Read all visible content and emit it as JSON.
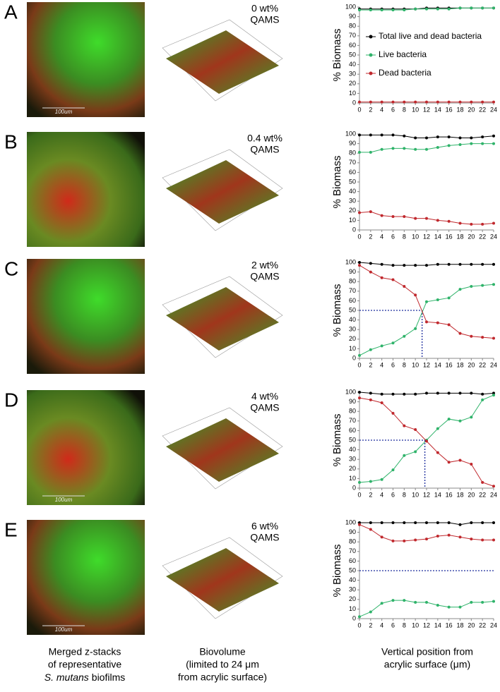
{
  "panels": [
    {
      "letter": "A",
      "label": [
        "0 wt%",
        "QAMS"
      ],
      "scale_bar": "100um"
    },
    {
      "letter": "B",
      "label": [
        "0.4 wt%",
        "QAMS"
      ]
    },
    {
      "letter": "C",
      "label": [
        "2 wt%",
        "QAMS"
      ]
    },
    {
      "letter": "D",
      "label": [
        "4 wt%",
        "QAMS"
      ],
      "scale_bar": "100um"
    },
    {
      "letter": "E",
      "label": [
        "6 wt%",
        "QAMS"
      ],
      "scale_bar": "100um"
    }
  ],
  "captions": [
    {
      "lines": [
        "Merged z-stacks",
        "of representative"
      ],
      "italic": "S. mutans",
      "rest": "biofilms"
    },
    {
      "lines": [
        "Biovolume",
        "(limited to 24 μm",
        "from acrylic surface)"
      ]
    },
    {
      "lines": [
        "Vertical position from",
        "acrylic surface (μm)"
      ]
    }
  ],
  "chart_data": [
    {
      "type": "line",
      "ylabel": "% Biomass",
      "x": [
        0,
        2,
        4,
        6,
        8,
        10,
        12,
        14,
        16,
        18,
        20,
        22,
        24
      ],
      "xlim": [
        0,
        24
      ],
      "xticks": [
        0,
        2,
        4,
        6,
        8,
        10,
        12,
        14,
        16,
        18,
        20,
        22,
        24
      ],
      "ylim": [
        0,
        100
      ],
      "yticks": [
        0,
        10,
        20,
        30,
        40,
        50,
        60,
        70,
        80,
        90,
        100
      ],
      "legend": "center-right",
      "series": [
        {
          "name": "Total live and dead bacteria",
          "color": "#000000",
          "values": [
            98,
            98,
            98,
            98,
            98,
            98,
            99,
            99,
            99,
            99,
            99,
            99,
            99
          ]
        },
        {
          "name": "Live bacteria",
          "color": "#2fb36a",
          "values": [
            97,
            97,
            97,
            97,
            97,
            98,
            98,
            98,
            98,
            99,
            99,
            99,
            99
          ]
        },
        {
          "name": "Dead bacteria",
          "color": "#c0282d",
          "values": [
            1,
            1,
            1,
            1,
            1,
            1,
            1,
            1,
            1,
            1,
            1,
            1,
            1
          ]
        }
      ]
    },
    {
      "type": "line",
      "ylabel": "% Biomass",
      "x": [
        0,
        2,
        4,
        6,
        8,
        10,
        12,
        14,
        16,
        18,
        20,
        22,
        24
      ],
      "xlim": [
        0,
        24
      ],
      "xticks": [
        0,
        2,
        4,
        6,
        8,
        10,
        12,
        14,
        16,
        18,
        20,
        22,
        24
      ],
      "ylim": [
        0,
        100
      ],
      "yticks": [
        0,
        10,
        20,
        30,
        40,
        50,
        60,
        70,
        80,
        90,
        100
      ],
      "series": [
        {
          "color": "#000000",
          "values": [
            99,
            99,
            99,
            99,
            98,
            96,
            96,
            97,
            97,
            96,
            96,
            97,
            98
          ]
        },
        {
          "color": "#2fb36a",
          "values": [
            81,
            81,
            84,
            85,
            85,
            84,
            84,
            86,
            88,
            89,
            90,
            90,
            90
          ]
        },
        {
          "color": "#c0282d",
          "values": [
            18,
            19,
            15,
            14,
            14,
            12,
            12,
            10,
            9,
            7,
            6,
            6,
            7
          ]
        }
      ]
    },
    {
      "type": "line",
      "ylabel": "% Biomass",
      "x": [
        0,
        2,
        4,
        6,
        8,
        10,
        12,
        14,
        16,
        18,
        20,
        22,
        24
      ],
      "xlim": [
        0,
        24
      ],
      "xticks": [
        0,
        2,
        4,
        6,
        8,
        10,
        12,
        14,
        16,
        18,
        20,
        22,
        24
      ],
      "ylim": [
        0,
        100
      ],
      "yticks": [
        0,
        10,
        20,
        30,
        40,
        50,
        60,
        70,
        80,
        90,
        100
      ],
      "hline": 50,
      "vline": 11.2,
      "series": [
        {
          "color": "#000000",
          "values": [
            100,
            99,
            98,
            97,
            97,
            97,
            97,
            98,
            98,
            98,
            98,
            98,
            98
          ]
        },
        {
          "color": "#2fb36a",
          "values": [
            3,
            9,
            13,
            16,
            23,
            31,
            59,
            61,
            63,
            72,
            75,
            76,
            77
          ]
        },
        {
          "color": "#c0282d",
          "values": [
            97,
            90,
            84,
            82,
            75,
            66,
            38,
            37,
            35,
            26,
            23,
            22,
            21
          ]
        }
      ]
    },
    {
      "type": "line",
      "ylabel": "% Biomass",
      "x": [
        0,
        2,
        4,
        6,
        8,
        10,
        12,
        14,
        16,
        18,
        20,
        22,
        24
      ],
      "xlim": [
        0,
        24
      ],
      "xticks": [
        0,
        2,
        4,
        6,
        8,
        10,
        12,
        14,
        16,
        18,
        20,
        22,
        24
      ],
      "ylim": [
        0,
        100
      ],
      "yticks": [
        0,
        10,
        20,
        30,
        40,
        50,
        60,
        70,
        80,
        90,
        100
      ],
      "hline": 50,
      "vline": 11.7,
      "series": [
        {
          "color": "#000000",
          "values": [
            100,
            99,
            98,
            98,
            98,
            98,
            99,
            99,
            99,
            99,
            99,
            98,
            99
          ]
        },
        {
          "color": "#2fb36a",
          "values": [
            6,
            7,
            9,
            19,
            34,
            38,
            50,
            62,
            72,
            70,
            74,
            92,
            97
          ]
        },
        {
          "color": "#c0282d",
          "values": [
            94,
            92,
            89,
            78,
            65,
            61,
            49,
            37,
            27,
            29,
            25,
            6,
            2
          ]
        }
      ]
    },
    {
      "type": "line",
      "ylabel": "% Biomass",
      "x": [
        0,
        2,
        4,
        6,
        8,
        10,
        12,
        14,
        16,
        18,
        20,
        22,
        24
      ],
      "xlim": [
        0,
        24
      ],
      "xticks": [
        0,
        2,
        4,
        6,
        8,
        10,
        12,
        14,
        16,
        18,
        20,
        22,
        24
      ],
      "ylim": [
        0,
        100
      ],
      "yticks": [
        0,
        10,
        20,
        30,
        40,
        50,
        60,
        70,
        80,
        90,
        100
      ],
      "hline": 50,
      "series": [
        {
          "color": "#000000",
          "values": [
            100,
            100,
            100,
            100,
            100,
            100,
            100,
            100,
            100,
            98,
            100,
            100,
            100
          ]
        },
        {
          "color": "#2fb36a",
          "values": [
            2,
            7,
            16,
            19,
            19,
            17,
            17,
            14,
            12,
            12,
            17,
            17,
            18
          ]
        },
        {
          "color": "#c0282d",
          "values": [
            98,
            93,
            85,
            81,
            81,
            82,
            83,
            86,
            87,
            85,
            83,
            82,
            82
          ]
        }
      ]
    }
  ]
}
